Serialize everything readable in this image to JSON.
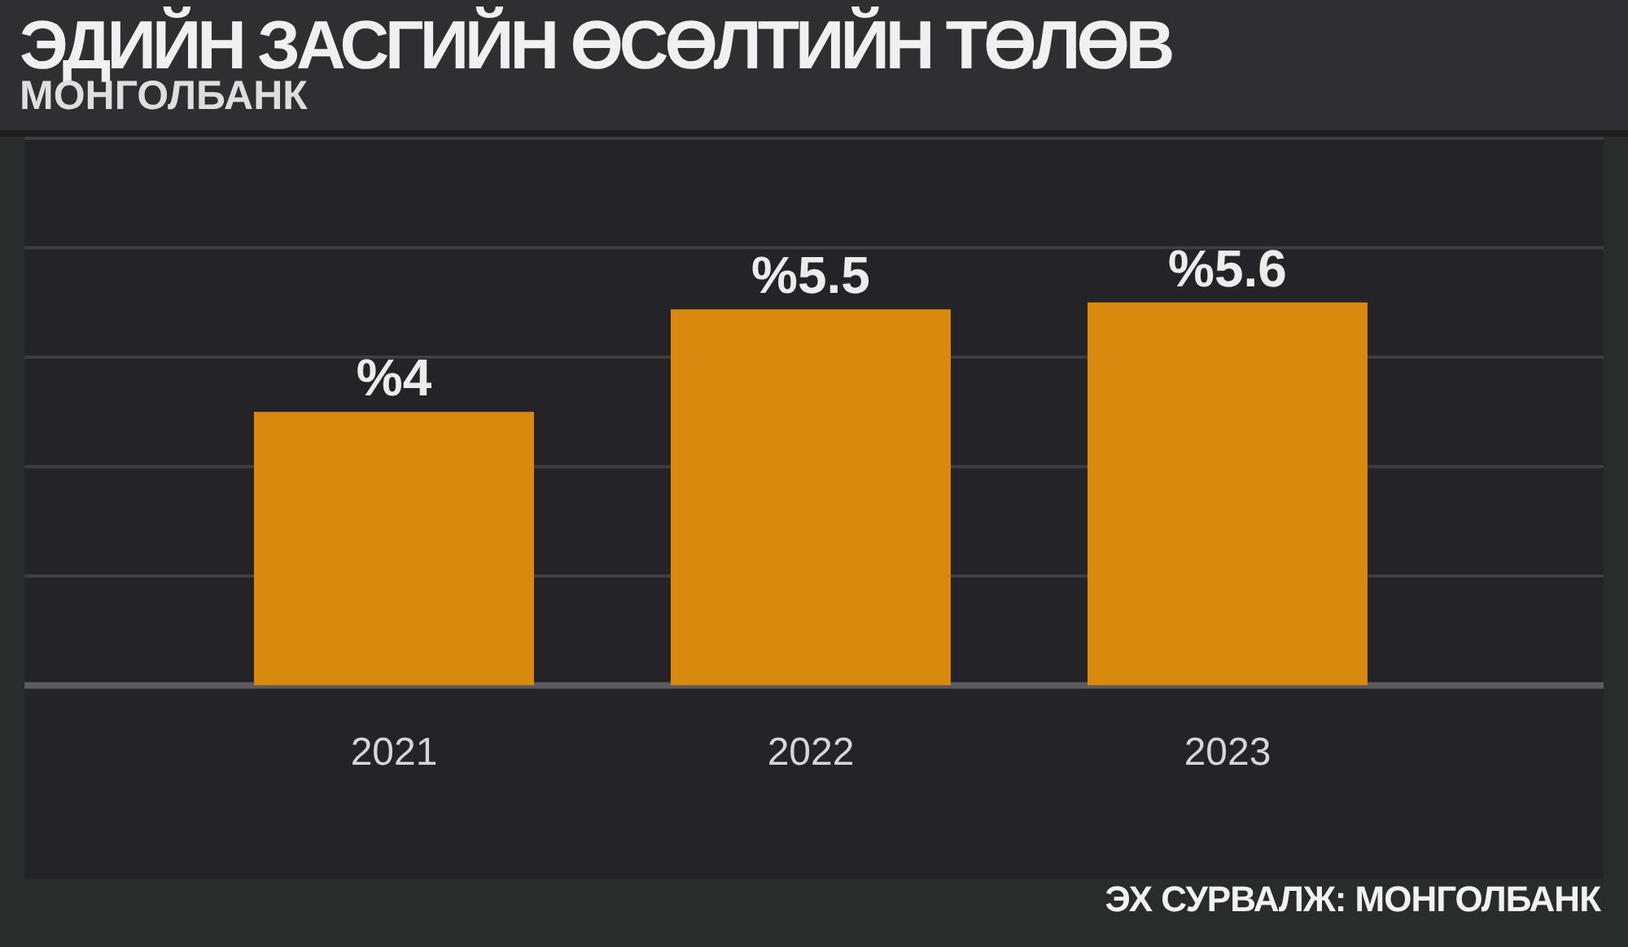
{
  "chart_data": {
    "type": "bar",
    "title": "ЭДИЙН ЗАСГИЙН ӨСӨЛТИЙН ТӨЛӨВ",
    "subtitle": "МОНГОЛБАНК",
    "categories": [
      "2021",
      "2022",
      "2023"
    ],
    "values": [
      4,
      5.5,
      5.6
    ],
    "value_labels": [
      "%4",
      "%5.5",
      "%5.6"
    ],
    "color": "#d98a0e",
    "grid": "y",
    "tick_labels": "x",
    "annotations": [
      "ЭХ СУРВАЛЖ: МОНГОЛБАНК"
    ]
  }
}
